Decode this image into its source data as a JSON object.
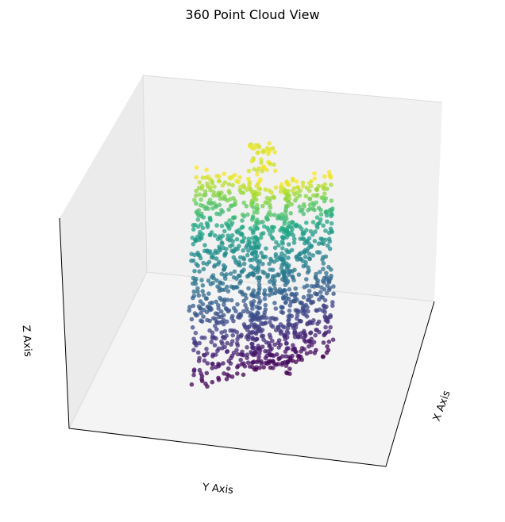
{
  "chart_data": {
    "type": "scatter",
    "projection": "3d",
    "title": "360 Point Cloud View",
    "xlabel": "X Axis",
    "ylabel": "Y Axis",
    "zlabel": "Z Axis",
    "tick_labels": "hidden",
    "grid": false,
    "colormap": "viridis",
    "color_by": "z",
    "colors": {
      "pane_left": "#ebebeb",
      "pane_back": "#f1f1f1",
      "pane_floor": "#f4f4f4",
      "pane_edge": "#dcdcdc",
      "axis_line": "#000000"
    },
    "series": [
      {
        "shape": "two intersecting rectangular panels of points forming a cross-shaped cloud",
        "point_count_approx": 1200,
        "z_range_relative": [
          0,
          1
        ]
      }
    ]
  }
}
